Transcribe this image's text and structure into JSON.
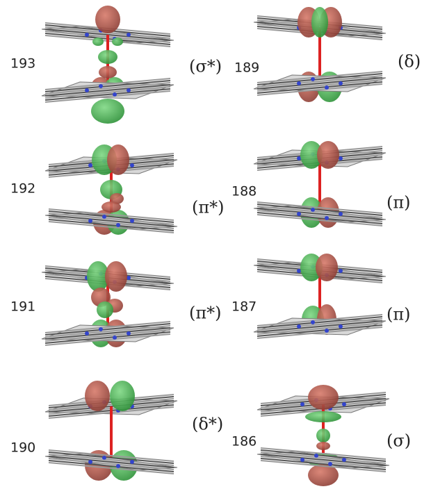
{
  "panels": [
    {
      "number": "193",
      "label": "(σ*)"
    },
    {
      "number": "192",
      "label": "(π*)"
    },
    {
      "number": "191",
      "label": "(π*)"
    },
    {
      "number": "190",
      "label": "(δ*)"
    },
    {
      "number": "189",
      "label": "(δ)"
    },
    {
      "number": "188",
      "label": "(π)"
    },
    {
      "number": "187",
      "label": "(π)"
    },
    {
      "number": "186",
      "label": "(σ)"
    }
  ]
}
